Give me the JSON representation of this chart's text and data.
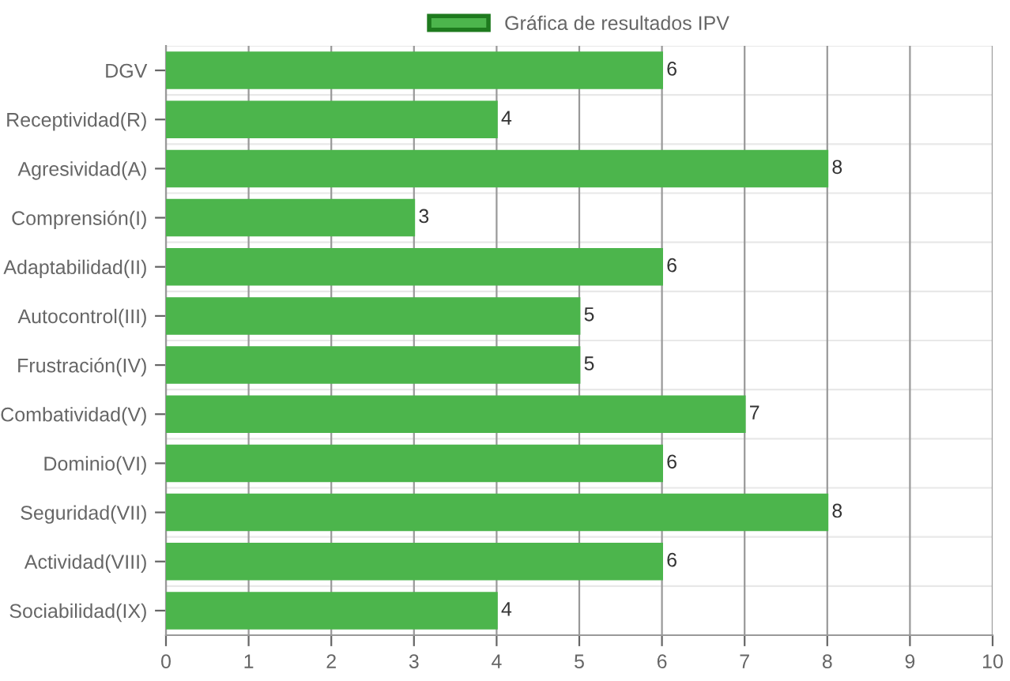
{
  "chart_data": {
    "type": "bar",
    "orientation": "horizontal",
    "categories": [
      "DGV",
      "Receptividad(R)",
      "Agresividad(A)",
      "Comprensión(I)",
      "Adaptabilidad(II)",
      "Autocontrol(III)",
      "Frustración(IV)",
      "Combatividad(V)",
      "Dominio(VI)",
      "Seguridad(VII)",
      "Actividad(VIII)",
      "Sociabilidad(IX)"
    ],
    "series": [
      {
        "name": "Gráfica de resultados IPV",
        "color": "#4cb54c",
        "values": [
          6,
          4,
          8,
          3,
          6,
          5,
          5,
          7,
          6,
          8,
          6,
          4
        ]
      }
    ],
    "xlim": [
      0,
      10
    ],
    "xticks": [
      0,
      1,
      2,
      3,
      4,
      5,
      6,
      7,
      8,
      9,
      10
    ],
    "grid": true,
    "legend": "top",
    "data_labels": true
  }
}
